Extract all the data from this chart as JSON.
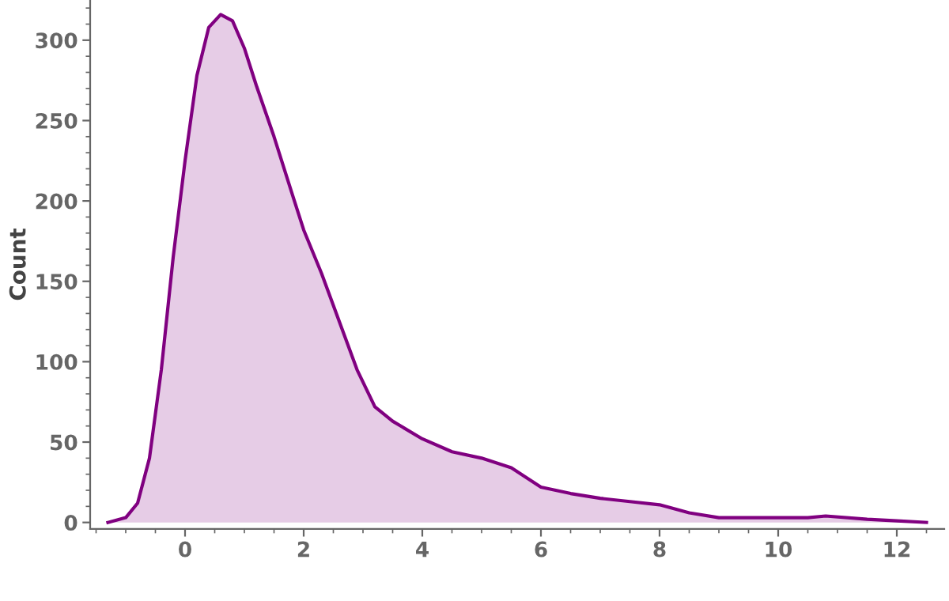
{
  "chart_data": {
    "type": "area",
    "ylabel": "Count",
    "series": [
      {
        "color": "#800080",
        "x": [
          -1.3,
          -1.0,
          -0.8,
          -0.6,
          -0.4,
          -0.2,
          0,
          0.2,
          0.4,
          0.6,
          0.8,
          1.0,
          1.2,
          1.5,
          1.8,
          2.0,
          2.3,
          2.6,
          2.9,
          3.2,
          3.5,
          4.0,
          4.5,
          5.0,
          5.5,
          6.0,
          6.5,
          7.0,
          7.5,
          8.0,
          8.5,
          9.0,
          9.5,
          10.0,
          10.5,
          10.8,
          11.5,
          12.0,
          12.5
        ],
        "values": [
          0,
          3,
          12,
          40,
          95,
          165,
          225,
          278,
          308,
          316,
          312,
          295,
          272,
          240,
          205,
          182,
          155,
          125,
          95,
          72,
          63,
          52,
          44,
          40,
          34,
          22,
          18,
          15,
          13,
          11,
          6,
          3,
          3,
          3,
          3,
          4,
          2,
          1,
          0
        ]
      }
    ],
    "xlim": [
      -1.6,
      12.8
    ],
    "ylim": [
      -4,
      325
    ],
    "xticks": [
      0,
      2,
      4,
      6,
      8,
      10,
      12
    ],
    "yticks": [
      0,
      50,
      100,
      150,
      200,
      250,
      300
    ],
    "grid": false,
    "legend": false
  }
}
